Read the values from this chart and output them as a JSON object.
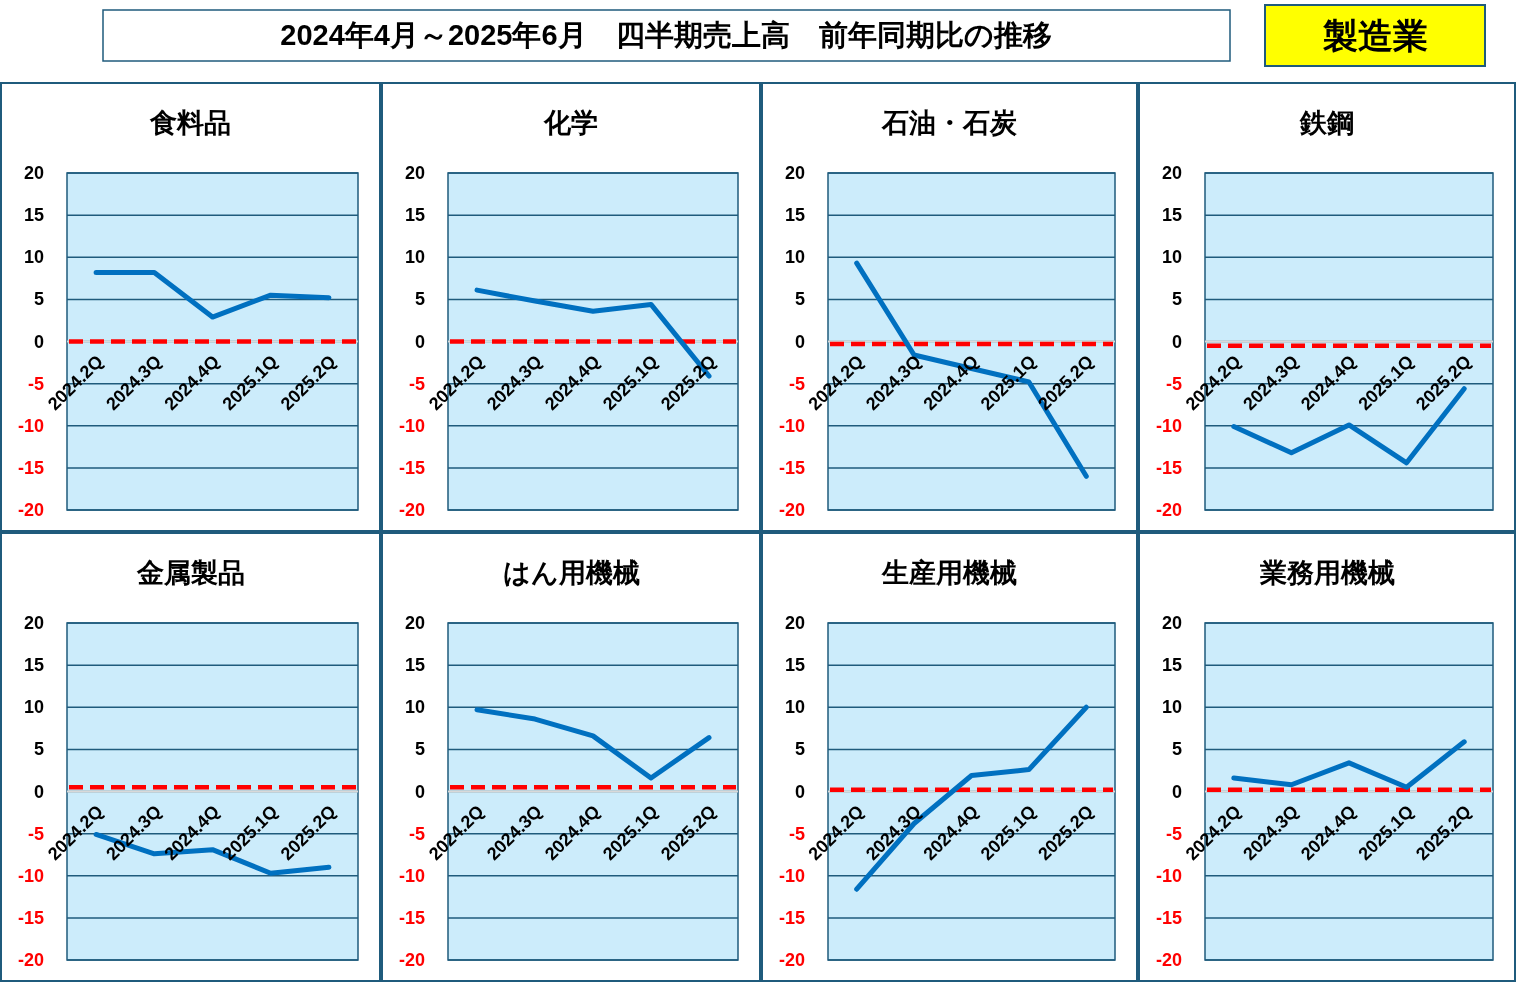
{
  "chart_data": [
    {
      "type": "other",
      "title": "2024年4月～2025年6月　四半期売上高　前年同期比の推移",
      "annotations": [
        "製造業"
      ]
    },
    {
      "type": "line",
      "title": "食料品",
      "categories": [
        "2024.2Q",
        "2024.3Q",
        "2024.4Q",
        "2025.1Q",
        "2025.2Q"
      ],
      "values": [
        8.2,
        8.2,
        2.9,
        5.5,
        5.2
      ],
      "color": "#0070c0",
      "ylim": [
        -20,
        20
      ],
      "yticks": [
        -20,
        -15,
        -10,
        -5,
        0,
        5,
        10,
        15,
        20
      ],
      "grid": "y",
      "ref_lines": [
        {
          "axis": "y",
          "value": 0,
          "color": "#ff0000",
          "line_style": "dashed"
        }
      ]
    },
    {
      "type": "line",
      "title": "化学",
      "categories": [
        "2024.2Q",
        "2024.3Q",
        "2024.4Q",
        "2025.1Q",
        "2025.2Q"
      ],
      "values": [
        6.1,
        4.8,
        3.6,
        4.4,
        -4.1
      ],
      "color": "#0070c0",
      "ylim": [
        -20,
        20
      ],
      "yticks": [
        -20,
        -15,
        -10,
        -5,
        0,
        5,
        10,
        15,
        20
      ],
      "grid": "y",
      "ref_lines": [
        {
          "axis": "y",
          "value": 0,
          "color": "#ff0000",
          "line_style": "dashed"
        }
      ]
    },
    {
      "type": "line",
      "title": "石油・石炭",
      "categories": [
        "2024.2Q",
        "2024.3Q",
        "2024.4Q",
        "2025.1Q",
        "2025.2Q"
      ],
      "values": [
        9.3,
        -1.6,
        -3.2,
        -4.8,
        -16.0
      ],
      "color": "#0070c0",
      "ylim": [
        -20,
        20
      ],
      "yticks": [
        -20,
        -15,
        -10,
        -5,
        0,
        5,
        10,
        15,
        20
      ],
      "grid": "y",
      "ref_lines": [
        {
          "axis": "y",
          "value": -0.3,
          "color": "#ff0000",
          "line_style": "dashed"
        }
      ]
    },
    {
      "type": "line",
      "title": "鉄鋼",
      "categories": [
        "2024.2Q",
        "2024.3Q",
        "2024.4Q",
        "2025.1Q",
        "2025.2Q"
      ],
      "values": [
        -10.1,
        -13.2,
        -9.9,
        -14.4,
        -5.6
      ],
      "color": "#0070c0",
      "ylim": [
        -20,
        20
      ],
      "yticks": [
        -20,
        -15,
        -10,
        -5,
        0,
        5,
        10,
        15,
        20
      ],
      "grid": "y",
      "ref_lines": [
        {
          "axis": "y",
          "value": -0.5,
          "color": "#ff0000",
          "line_style": "dashed"
        }
      ]
    },
    {
      "type": "line",
      "title": "金属製品",
      "categories": [
        "2024.2Q",
        "2024.3Q",
        "2024.4Q",
        "2025.1Q",
        "2025.2Q"
      ],
      "values": [
        -5.1,
        -7.4,
        -6.9,
        -9.7,
        -9.0
      ],
      "color": "#0070c0",
      "ylim": [
        -20,
        20
      ],
      "yticks": [
        -20,
        -15,
        -10,
        -5,
        0,
        5,
        10,
        15,
        20
      ],
      "grid": "y",
      "ref_lines": [
        {
          "axis": "y",
          "value": 0.5,
          "color": "#ff0000",
          "line_style": "dashed"
        }
      ]
    },
    {
      "type": "line",
      "title": "はん用機械",
      "categories": [
        "2024.2Q",
        "2024.3Q",
        "2024.4Q",
        "2025.1Q",
        "2025.2Q"
      ],
      "values": [
        9.7,
        8.6,
        6.6,
        1.6,
        6.4
      ],
      "color": "#0070c0",
      "ylim": [
        -20,
        20
      ],
      "yticks": [
        -20,
        -15,
        -10,
        -5,
        0,
        5,
        10,
        15,
        20
      ],
      "grid": "y",
      "ref_lines": [
        {
          "axis": "y",
          "value": 0.5,
          "color": "#ff0000",
          "line_style": "dashed"
        }
      ]
    },
    {
      "type": "line",
      "title": "生産用機械",
      "categories": [
        "2024.2Q",
        "2024.3Q",
        "2024.4Q",
        "2025.1Q",
        "2025.2Q"
      ],
      "values": [
        -11.6,
        -3.8,
        1.9,
        2.6,
        10.0
      ],
      "color": "#0070c0",
      "ylim": [
        -20,
        20
      ],
      "yticks": [
        -20,
        -15,
        -10,
        -5,
        0,
        5,
        10,
        15,
        20
      ],
      "grid": "y",
      "ref_lines": [
        {
          "axis": "y",
          "value": 0.2,
          "color": "#ff0000",
          "line_style": "dashed"
        }
      ]
    },
    {
      "type": "line",
      "title": "業務用機械",
      "categories": [
        "2024.2Q",
        "2024.3Q",
        "2024.4Q",
        "2025.1Q",
        "2025.2Q"
      ],
      "values": [
        1.6,
        0.8,
        3.4,
        0.5,
        5.9
      ],
      "color": "#0070c0",
      "ylim": [
        -20,
        20
      ],
      "yticks": [
        -20,
        -15,
        -10,
        -5,
        0,
        5,
        10,
        15,
        20
      ],
      "grid": "y",
      "ref_lines": [
        {
          "axis": "y",
          "value": 0.2,
          "color": "#ff0000",
          "line_style": "dashed"
        }
      ]
    }
  ]
}
